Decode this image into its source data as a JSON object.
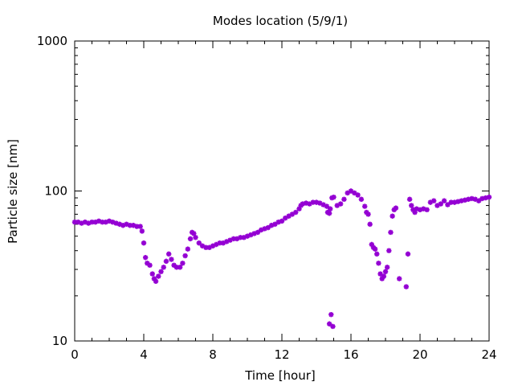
{
  "chart_data": {
    "type": "scatter",
    "title": "Modes location (5/9/1)",
    "xlabel": "Time [hour]",
    "ylabel": "Particle size [nm]",
    "xlim": [
      0,
      24
    ],
    "ylim": [
      10,
      1000
    ],
    "yscale": "log",
    "x_ticks": [
      0,
      4,
      8,
      12,
      16,
      20,
      24
    ],
    "x_tick_labels": [
      "0",
      "4",
      "8",
      "12",
      "16",
      "20",
      "24"
    ],
    "y_ticks": [
      10,
      100,
      1000
    ],
    "y_tick_labels": [
      "10",
      "100",
      "1000"
    ],
    "marker_color": "#9400d3",
    "grid": false,
    "series": [
      {
        "name": "modes",
        "points": [
          [
            0.0,
            62
          ],
          [
            0.2,
            62
          ],
          [
            0.4,
            61
          ],
          [
            0.6,
            62
          ],
          [
            0.8,
            61
          ],
          [
            1.0,
            62
          ],
          [
            1.2,
            62
          ],
          [
            1.4,
            63
          ],
          [
            1.6,
            62
          ],
          [
            1.8,
            62
          ],
          [
            2.0,
            63
          ],
          [
            2.2,
            62
          ],
          [
            2.4,
            61
          ],
          [
            2.6,
            60
          ],
          [
            2.8,
            59
          ],
          [
            3.0,
            60
          ],
          [
            3.2,
            59
          ],
          [
            3.4,
            59
          ],
          [
            3.6,
            58
          ],
          [
            3.8,
            58
          ],
          [
            3.9,
            54
          ],
          [
            4.0,
            45
          ],
          [
            4.1,
            36
          ],
          [
            4.2,
            33
          ],
          [
            4.35,
            32
          ],
          [
            4.5,
            28
          ],
          [
            4.6,
            26
          ],
          [
            4.7,
            25
          ],
          [
            4.85,
            27
          ],
          [
            5.0,
            29
          ],
          [
            5.15,
            31
          ],
          [
            5.3,
            34
          ],
          [
            5.45,
            38
          ],
          [
            5.6,
            35
          ],
          [
            5.75,
            32
          ],
          [
            5.9,
            31
          ],
          [
            6.1,
            31
          ],
          [
            6.25,
            33
          ],
          [
            6.4,
            37
          ],
          [
            6.55,
            41
          ],
          [
            6.7,
            48
          ],
          [
            6.8,
            53
          ],
          [
            6.9,
            52
          ],
          [
            7.0,
            49
          ],
          [
            7.2,
            45
          ],
          [
            7.4,
            43
          ],
          [
            7.6,
            42
          ],
          [
            7.8,
            42
          ],
          [
            8.0,
            43
          ],
          [
            8.2,
            44
          ],
          [
            8.4,
            45
          ],
          [
            8.6,
            45
          ],
          [
            8.8,
            46
          ],
          [
            9.0,
            47
          ],
          [
            9.2,
            48
          ],
          [
            9.4,
            48
          ],
          [
            9.6,
            49
          ],
          [
            9.8,
            49
          ],
          [
            10.0,
            50
          ],
          [
            10.2,
            51
          ],
          [
            10.4,
            52
          ],
          [
            10.6,
            53
          ],
          [
            10.8,
            55
          ],
          [
            11.0,
            56
          ],
          [
            11.2,
            57
          ],
          [
            11.4,
            59
          ],
          [
            11.6,
            60
          ],
          [
            11.8,
            62
          ],
          [
            12.0,
            63
          ],
          [
            12.2,
            66
          ],
          [
            12.4,
            68
          ],
          [
            12.6,
            70
          ],
          [
            12.8,
            72
          ],
          [
            13.0,
            76
          ],
          [
            13.1,
            80
          ],
          [
            13.2,
            82
          ],
          [
            13.4,
            83
          ],
          [
            13.6,
            82
          ],
          [
            13.8,
            84
          ],
          [
            14.0,
            84
          ],
          [
            14.2,
            83
          ],
          [
            14.4,
            81
          ],
          [
            14.6,
            79
          ],
          [
            14.65,
            72
          ],
          [
            14.75,
            71
          ],
          [
            14.8,
            76
          ],
          [
            14.9,
            90
          ],
          [
            15.0,
            91
          ],
          [
            15.2,
            80
          ],
          [
            15.4,
            82
          ],
          [
            15.6,
            88
          ],
          [
            15.8,
            97
          ],
          [
            16.0,
            100
          ],
          [
            16.2,
            97
          ],
          [
            16.4,
            94
          ],
          [
            16.6,
            88
          ],
          [
            16.8,
            79
          ],
          [
            16.9,
            72
          ],
          [
            17.0,
            70
          ],
          [
            17.1,
            60
          ],
          [
            17.2,
            44
          ],
          [
            17.3,
            42
          ],
          [
            17.4,
            41
          ],
          [
            17.5,
            38
          ],
          [
            17.6,
            33
          ],
          [
            17.7,
            28
          ],
          [
            17.8,
            26
          ],
          [
            17.9,
            27
          ],
          [
            18.0,
            29
          ],
          [
            18.1,
            31
          ],
          [
            18.2,
            40
          ],
          [
            18.3,
            53
          ],
          [
            18.4,
            68
          ],
          [
            18.5,
            75
          ],
          [
            18.6,
            77
          ],
          [
            18.8,
            26
          ],
          [
            19.2,
            23
          ],
          [
            19.3,
            38
          ],
          [
            19.4,
            88
          ],
          [
            19.5,
            80
          ],
          [
            19.6,
            75
          ],
          [
            19.7,
            72
          ],
          [
            19.8,
            76
          ],
          [
            20.0,
            75
          ],
          [
            20.2,
            76
          ],
          [
            20.4,
            75
          ],
          [
            20.6,
            84
          ],
          [
            20.8,
            86
          ],
          [
            21.0,
            80
          ],
          [
            21.2,
            82
          ],
          [
            21.4,
            86
          ],
          [
            21.6,
            81
          ],
          [
            21.8,
            84
          ],
          [
            22.0,
            84
          ],
          [
            22.2,
            85
          ],
          [
            22.4,
            86
          ],
          [
            22.6,
            87
          ],
          [
            22.8,
            88
          ],
          [
            23.0,
            89
          ],
          [
            23.2,
            88
          ],
          [
            23.4,
            86
          ],
          [
            23.6,
            89
          ],
          [
            23.8,
            90
          ],
          [
            24.0,
            91
          ],
          [
            14.75,
            13
          ],
          [
            14.85,
            15
          ],
          [
            14.95,
            12.5
          ]
        ]
      }
    ]
  }
}
